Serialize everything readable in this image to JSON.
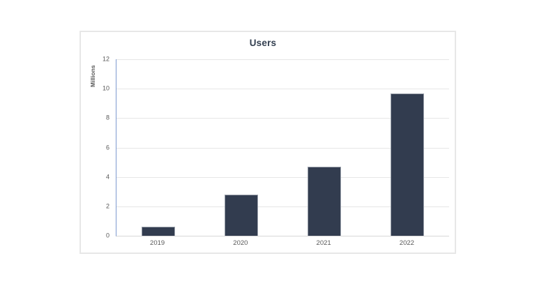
{
  "page": {
    "background_color": "#ffffff"
  },
  "chart_card": {
    "border_color": "#e7e7e7",
    "background_color": "#ffffff"
  },
  "chart_data": {
    "type": "bar",
    "title": "Users",
    "categories": [
      "2019",
      "2020",
      "2021",
      "2022"
    ],
    "values": [
      0.6,
      2.8,
      4.7,
      9.7
    ],
    "xlabel": "",
    "ylabel": "Millions",
    "ylim": [
      0,
      12
    ],
    "yticks": [
      0,
      2,
      4,
      6,
      8,
      10,
      12
    ],
    "grid": true,
    "legend": "none",
    "bar_color": "#323c4f",
    "bar_border_color": "#9aa0ab",
    "value_axis_line_color": "#7d9ad0",
    "category_axis_line_color": "#d8d8d8",
    "gridline_color": "#e6e6e6",
    "tick_label_color": "#595959",
    "title_color": "#333f50"
  }
}
